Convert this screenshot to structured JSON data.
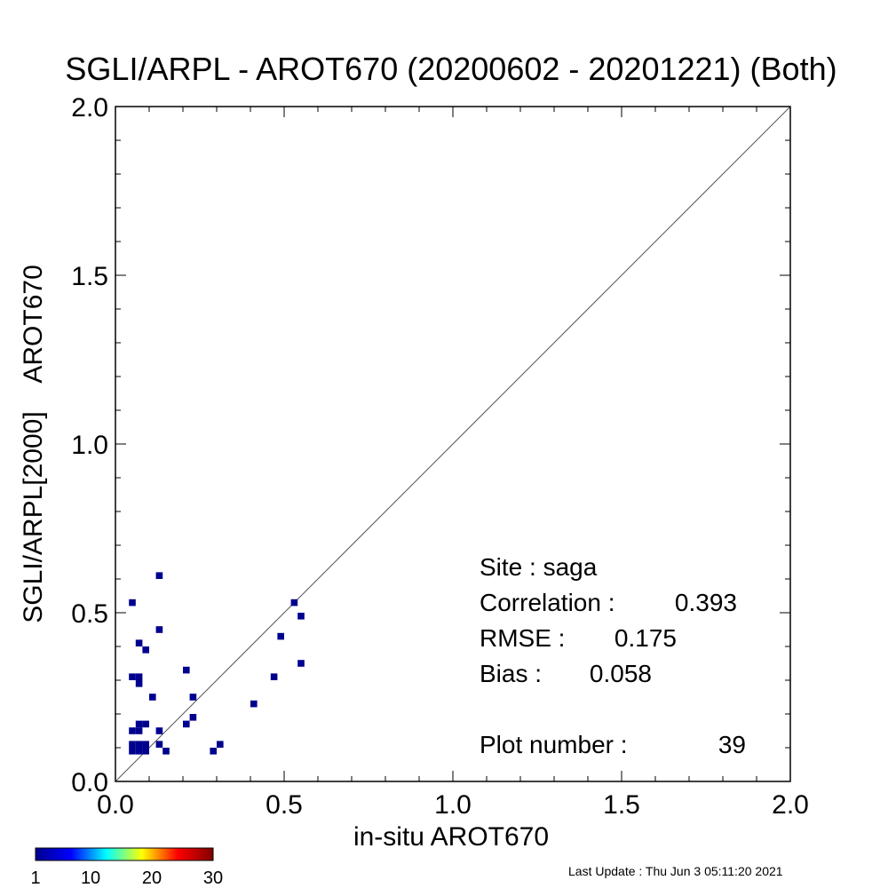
{
  "chart_data": {
    "type": "scatter",
    "title": "SGLI/ARPL - AROT670 (20200602 - 20201221) (Both)",
    "xlabel": "in-situ AROT670",
    "ylabel": "SGLI/ARPL[2000]    AROT670",
    "xlim": [
      0.0,
      2.0
    ],
    "ylim": [
      0.0,
      2.0
    ],
    "x_ticks": [
      "0.0",
      "0.5",
      "1.0",
      "1.5",
      "2.0"
    ],
    "y_ticks": [
      "0.0",
      "0.5",
      "1.0",
      "1.5",
      "2.0"
    ],
    "reference_line": "1:1",
    "grid": false,
    "bin_size": 0.02,
    "points": [
      {
        "x": 0.05,
        "y": 0.53
      },
      {
        "x": 0.13,
        "y": 0.61
      },
      {
        "x": 0.07,
        "y": 0.41
      },
      {
        "x": 0.09,
        "y": 0.39
      },
      {
        "x": 0.13,
        "y": 0.45
      },
      {
        "x": 0.05,
        "y": 0.31
      },
      {
        "x": 0.07,
        "y": 0.31
      },
      {
        "x": 0.07,
        "y": 0.29
      },
      {
        "x": 0.11,
        "y": 0.25
      },
      {
        "x": 0.21,
        "y": 0.33
      },
      {
        "x": 0.23,
        "y": 0.25
      },
      {
        "x": 0.23,
        "y": 0.19
      },
      {
        "x": 0.21,
        "y": 0.17
      },
      {
        "x": 0.05,
        "y": 0.15
      },
      {
        "x": 0.07,
        "y": 0.15
      },
      {
        "x": 0.07,
        "y": 0.17
      },
      {
        "x": 0.09,
        "y": 0.17
      },
      {
        "x": 0.13,
        "y": 0.15
      },
      {
        "x": 0.05,
        "y": 0.11
      },
      {
        "x": 0.07,
        "y": 0.11
      },
      {
        "x": 0.09,
        "y": 0.11
      },
      {
        "x": 0.05,
        "y": 0.09
      },
      {
        "x": 0.07,
        "y": 0.09
      },
      {
        "x": 0.09,
        "y": 0.09
      },
      {
        "x": 0.13,
        "y": 0.11
      },
      {
        "x": 0.15,
        "y": 0.09
      },
      {
        "x": 0.29,
        "y": 0.09
      },
      {
        "x": 0.31,
        "y": 0.11
      },
      {
        "x": 0.41,
        "y": 0.23
      },
      {
        "x": 0.47,
        "y": 0.31
      },
      {
        "x": 0.49,
        "y": 0.43
      },
      {
        "x": 0.53,
        "y": 0.53
      },
      {
        "x": 0.55,
        "y": 0.49
      },
      {
        "x": 0.55,
        "y": 0.35
      }
    ],
    "colorbar": {
      "ticks": [
        "1",
        "10",
        "20",
        "30"
      ],
      "min": 1,
      "max": 30,
      "colors": [
        "#00008f",
        "#0000ff",
        "#00ffff",
        "#ffff00",
        "#ff0000",
        "#800000"
      ]
    },
    "point_color": "#00008f"
  },
  "stats": {
    "site": "Site : saga",
    "correlation_label": "Correlation :",
    "correlation_value": "0.393",
    "rmse_label": "RMSE :",
    "rmse_value": "0.175",
    "bias_label": "Bias :",
    "bias_value": "0.058",
    "plot_number_label": "Plot number :",
    "plot_number_value": "39"
  },
  "footer": {
    "last_update": "Last Update : Thu Jun  3 05:11:20 2021"
  }
}
